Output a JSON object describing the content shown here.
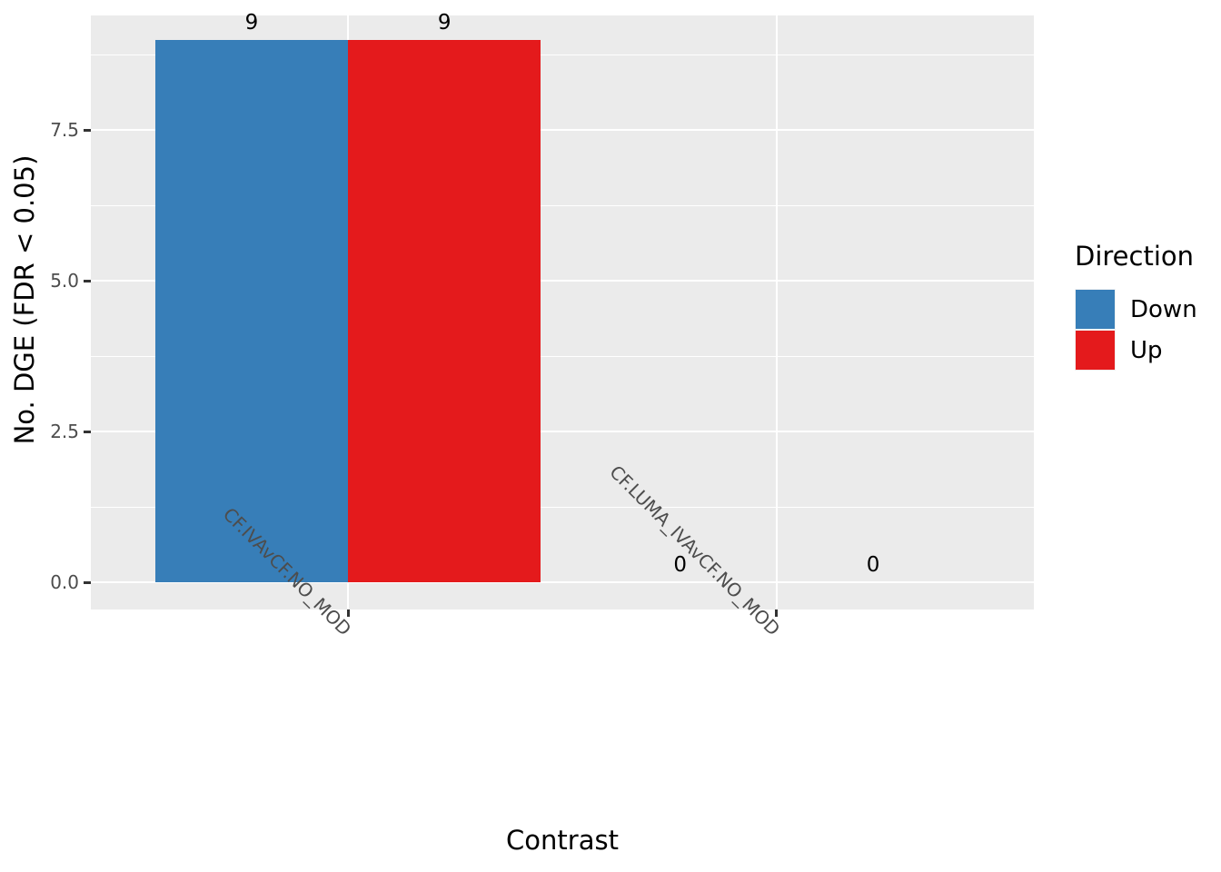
{
  "chart_data": {
    "type": "bar",
    "title": "",
    "xlabel": "Contrast",
    "ylabel": "No. DGE (FDR < 0.05)",
    "categories": [
      "CF.IVAvCF.NO_MOD",
      "CF.LUMA_IVAvCF.NO_MOD"
    ],
    "series": [
      {
        "name": "Down",
        "color": "#377EB8",
        "values": [
          9,
          0
        ]
      },
      {
        "name": "Up",
        "color": "#E41A1C",
        "values": [
          9,
          0
        ]
      }
    ],
    "bar_value_labels": [
      [
        "9",
        "9"
      ],
      [
        "0",
        "0"
      ]
    ],
    "y_axis": {
      "tick_labels": [
        "0.0",
        "2.5",
        "5.0",
        "7.5"
      ],
      "tick_values": [
        0,
        2.5,
        5.0,
        7.5
      ],
      "minor_values": [
        1.25,
        3.75,
        6.25,
        8.75
      ],
      "ylim": [
        -0.45,
        9.4
      ]
    },
    "legend": {
      "title": "Direction",
      "position": "right",
      "entries": [
        {
          "label": "Down",
          "color": "#377EB8"
        },
        {
          "label": "Up",
          "color": "#E41A1C"
        }
      ]
    },
    "style": {
      "panel_bg": "#EBEBEB",
      "grid_color": "#FFFFFF",
      "tick_color": "#333333",
      "tick_label_color": "#4D4D4D",
      "grid": "on"
    }
  }
}
